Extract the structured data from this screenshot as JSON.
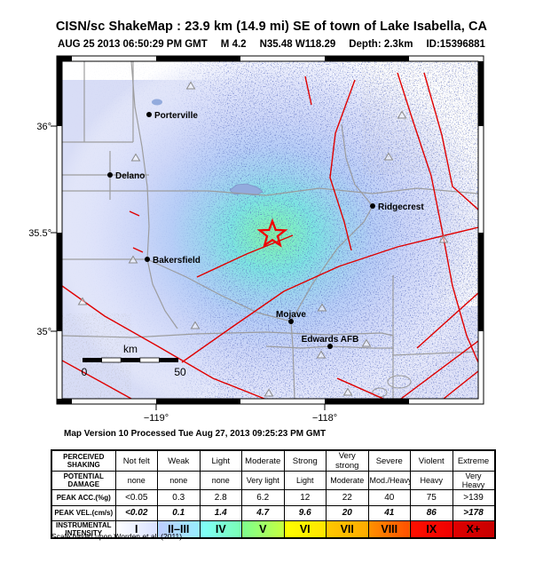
{
  "header": {
    "title": "CISN/sc ShakeMap : 23.9 km (14.9 mi) SE of town of Lake Isabella, CA",
    "datetime": "AUG 25 2013 06:50:29 PM GMT",
    "magnitude": "M 4.2",
    "coordinates": "N35.48 W118.29",
    "depth": "Depth: 2.3km",
    "event_id": "ID:15396881"
  },
  "map": {
    "lat_labels": [
      "36°",
      "35.5°",
      "35°"
    ],
    "lon_labels": [
      "−119°",
      "−118°"
    ],
    "cities": [
      {
        "name": "Porterville"
      },
      {
        "name": "Delano"
      },
      {
        "name": "Ridgecrest"
      },
      {
        "name": "Bakersfield"
      },
      {
        "name": "Mojave"
      },
      {
        "name": "Edwards AFB"
      }
    ],
    "scale_bar": {
      "unit": "km",
      "start": "0",
      "end": "50"
    },
    "version_line": "Map Version 10 Processed Tue Aug 27, 2013 09:25:23 PM GMT"
  },
  "legend_table": {
    "rows": [
      {
        "label": "PERCEIVED SHAKING",
        "cells": [
          "Not felt",
          "Weak",
          "Light",
          "Moderate",
          "Strong",
          "Very strong",
          "Severe",
          "Violent",
          "Extreme"
        ]
      },
      {
        "label": "POTENTIAL DAMAGE",
        "cells": [
          "none",
          "none",
          "none",
          "Very light",
          "Light",
          "Moderate",
          "Mod./Heavy",
          "Heavy",
          "Very Heavy"
        ]
      },
      {
        "label": "PEAK ACC.(%g)",
        "cells": [
          "<0.05",
          "0.3",
          "2.8",
          "6.2",
          "12",
          "22",
          "40",
          "75",
          ">139"
        ]
      },
      {
        "label": "PEAK VEL.(cm/s)",
        "cells": [
          "<0.02",
          "0.1",
          "1.4",
          "4.7",
          "9.6",
          "20",
          "41",
          "86",
          ">178"
        ]
      },
      {
        "label": "INSTRUMENTAL INTENSITY",
        "cells": [
          "I",
          "II–III",
          "IV",
          "V",
          "VI",
          "VII",
          "VIII",
          "IX",
          "X+"
        ]
      }
    ],
    "intensity_colors": [
      {
        "from": "#ffffff",
        "to": "#d9e1ff"
      },
      {
        "from": "#bfccff",
        "to": "#97eeff"
      },
      {
        "from": "#80ffff",
        "to": "#7affb4"
      },
      {
        "from": "#7cff90",
        "to": "#c6ff3e"
      },
      {
        "from": "#fdff00",
        "to": "#ffe400"
      },
      {
        "from": "#ffc800",
        "to": "#ffab00"
      },
      {
        "from": "#ff9100",
        "to": "#ff5000"
      },
      {
        "from": "#ff1000",
        "to": "#f00000"
      },
      {
        "from": "#e00000",
        "to": "#c80000"
      }
    ],
    "footnote": "Scale based upon Worden et al. (2011)"
  }
}
